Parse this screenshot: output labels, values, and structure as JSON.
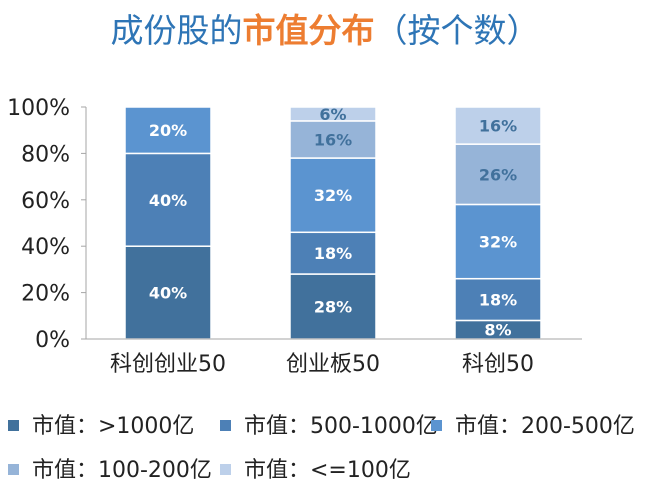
{
  "title": {
    "part1": "成份股的",
    "highlight": "市值分布",
    "part2": "（按个数）"
  },
  "chart_data": {
    "type": "bar",
    "stacked": true,
    "categories": [
      "科创创业50",
      "创业板50",
      "科创50"
    ],
    "ylim": [
      0,
      100
    ],
    "yticks": [
      "0%",
      "20%",
      "40%",
      "60%",
      "80%",
      "100%"
    ],
    "grid": false,
    "legend_position": "bottom",
    "series": [
      {
        "name": "市值：>1000亿",
        "values": [
          40,
          28,
          8
        ],
        "labels": [
          "40%",
          "28%",
          "8%"
        ],
        "color": "#41719c",
        "label_color": "#ffffff"
      },
      {
        "name": "市值：500-1000亿",
        "values": [
          40,
          18,
          18
        ],
        "labels": [
          "40%",
          "18%",
          "18%"
        ],
        "color": "#4d80b6",
        "label_color": "#ffffff"
      },
      {
        "name": "市值：200-500亿",
        "values": [
          20,
          32,
          32
        ],
        "labels": [
          "20%",
          "32%",
          "32%"
        ],
        "color": "#5b94d0",
        "label_color": "#ffffff"
      },
      {
        "name": "市值：100-200亿",
        "values": [
          0,
          16,
          26
        ],
        "labels": [
          "",
          "16%",
          "26%"
        ],
        "color": "#96b4d8",
        "label_color": "#41719c"
      },
      {
        "name": "市值：<=100亿",
        "values": [
          0,
          6,
          16
        ],
        "labels": [
          "",
          "6%",
          "16%"
        ],
        "color": "#bdd0ea",
        "label_color": "#41719c"
      }
    ]
  }
}
